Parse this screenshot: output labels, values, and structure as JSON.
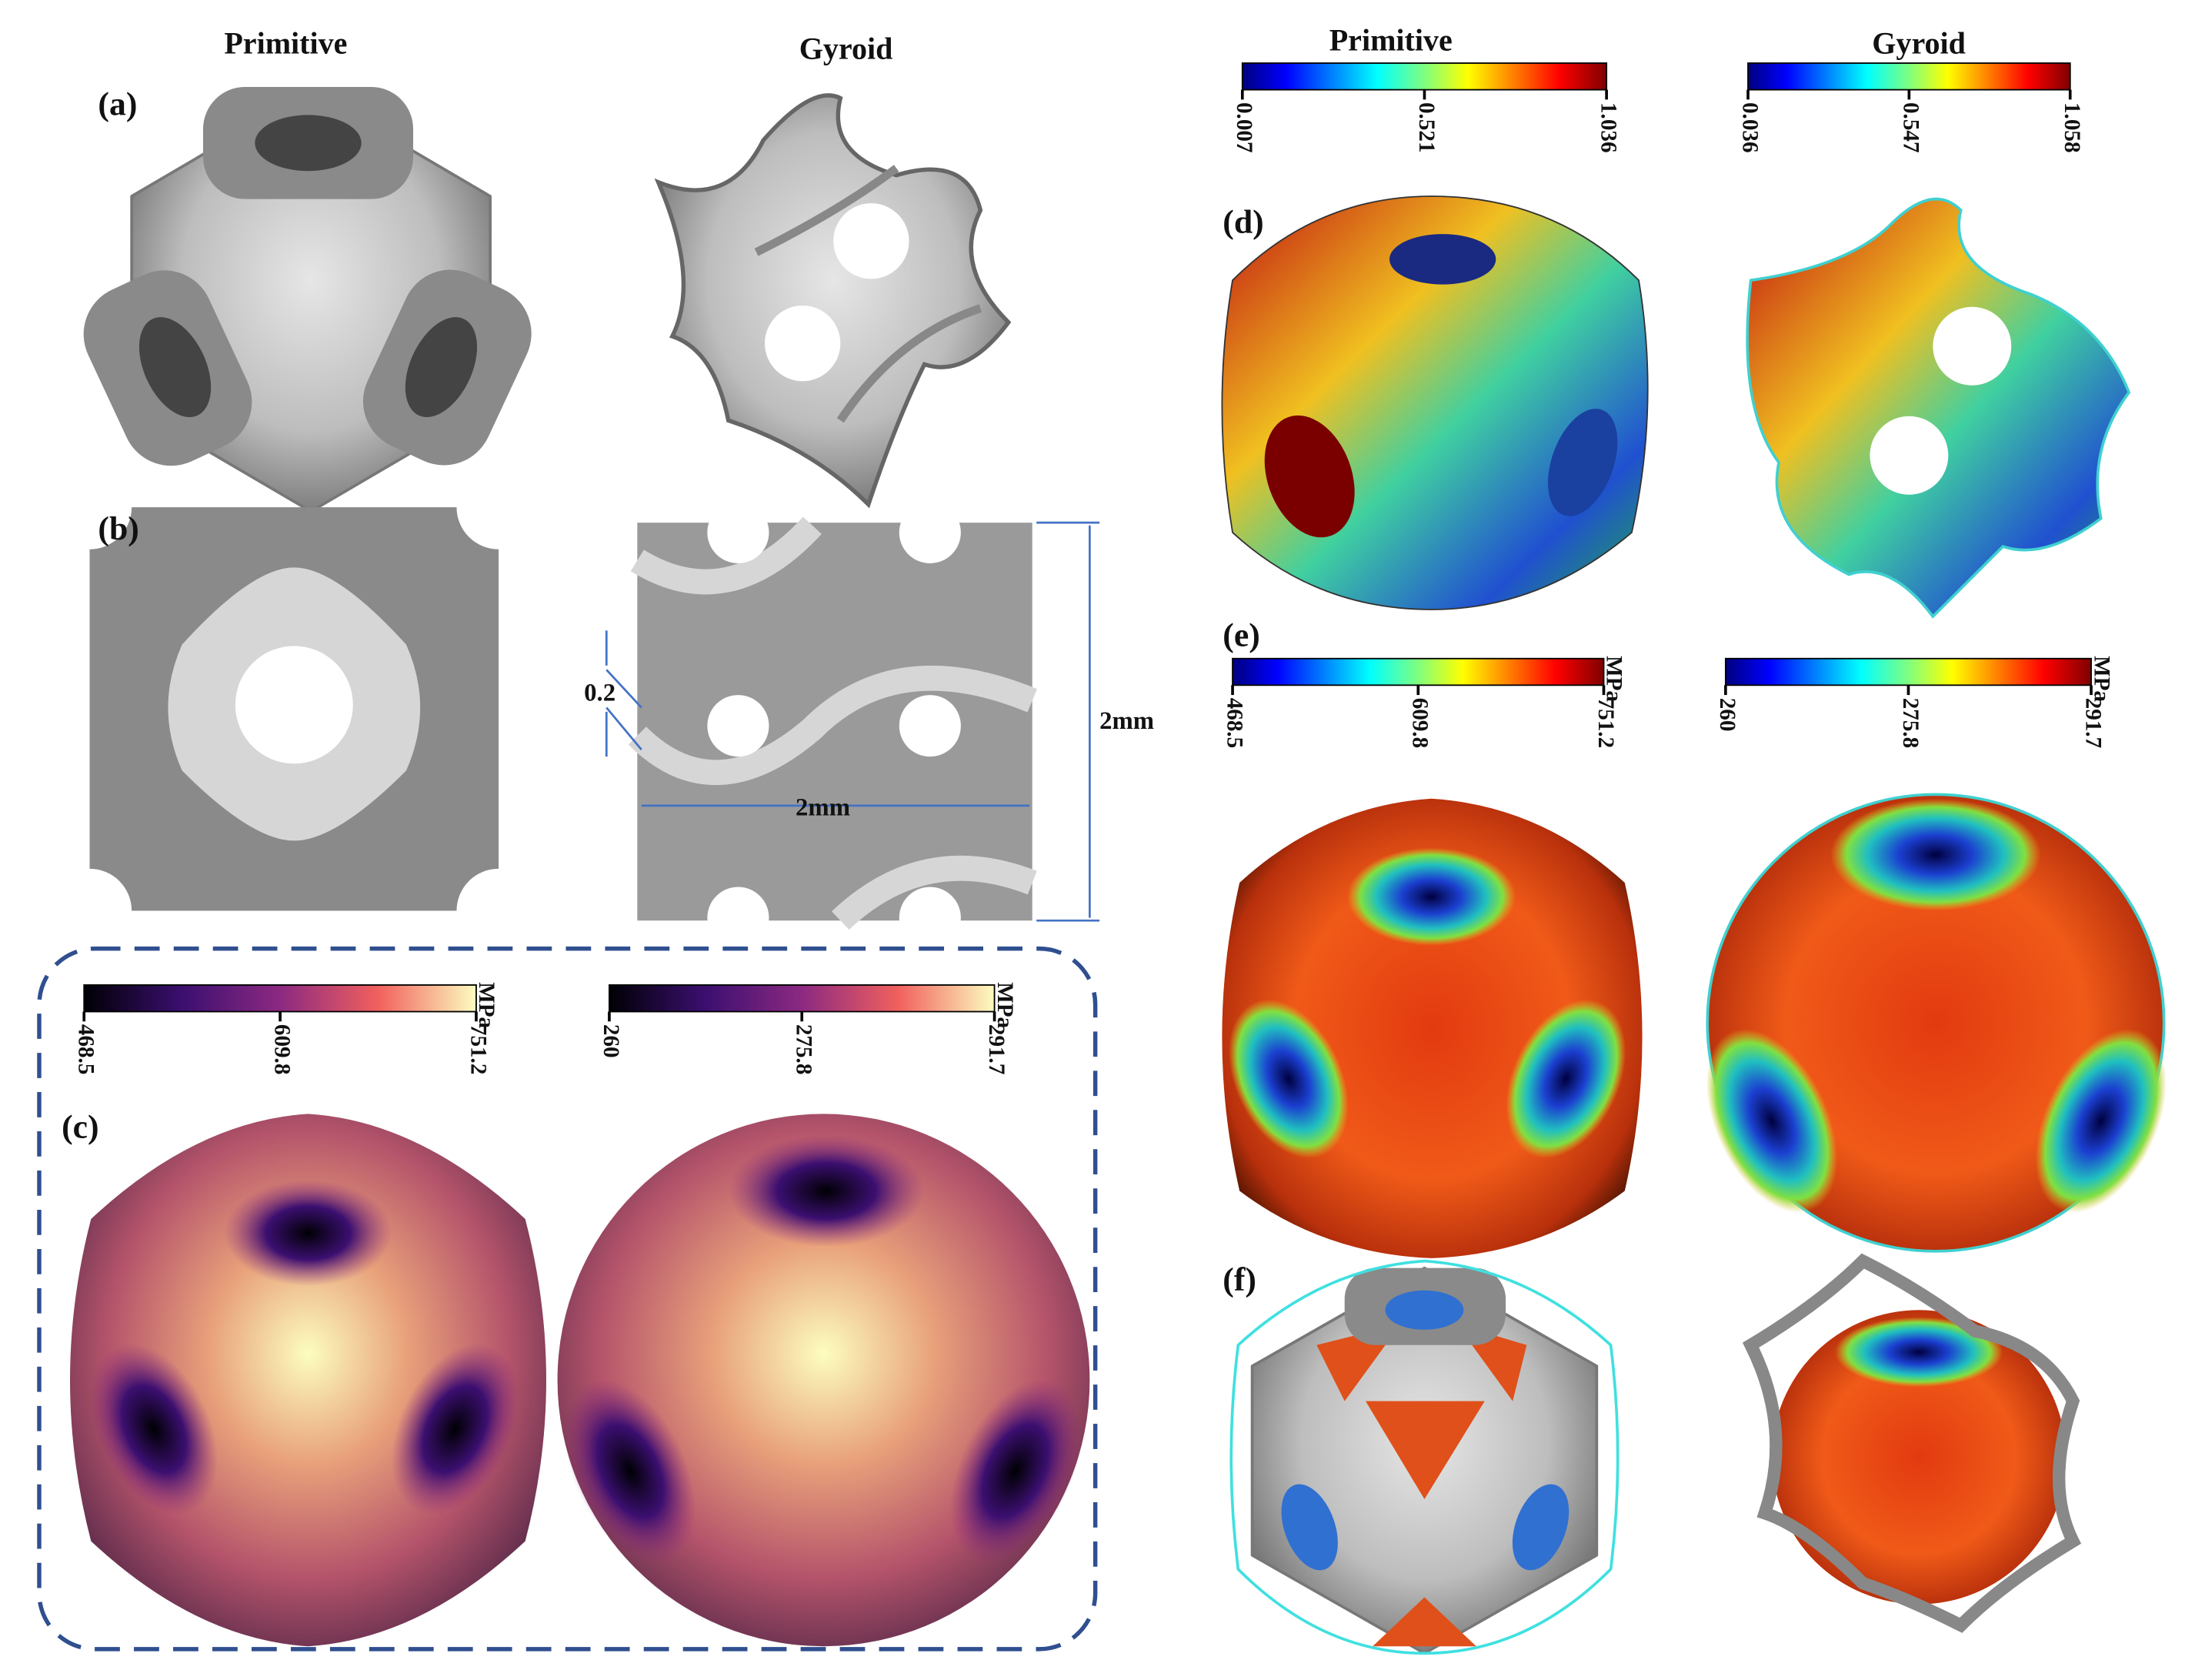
{
  "headers": [
    "Primitive",
    "Gyroid",
    "Primitive",
    "Gyroid"
  ],
  "panels": [
    "(a)",
    "(b)",
    "(c)",
    "(d)",
    "(e)",
    "(f)"
  ],
  "dimensions": {
    "thickness": "0.2",
    "width": "2mm",
    "height": "2mm"
  },
  "colorbars": [
    {
      "ticks": [
        "468.5",
        "609.8",
        "751.2"
      ],
      "unit": "MPa"
    },
    {
      "ticks": [
        "260",
        "275.8",
        "291.7"
      ],
      "unit": "MPa"
    },
    {
      "ticks": [
        "0.007",
        "0.521",
        "1.036"
      ]
    },
    {
      "ticks": [
        "0.036",
        "0.547",
        "1.058"
      ]
    },
    {
      "ticks": [
        "468.5",
        "609.8",
        "751.2"
      ],
      "unit": "MPa"
    },
    {
      "ticks": [
        "260",
        "275.8",
        "291.7"
      ],
      "unit": "MPa"
    }
  ]
}
